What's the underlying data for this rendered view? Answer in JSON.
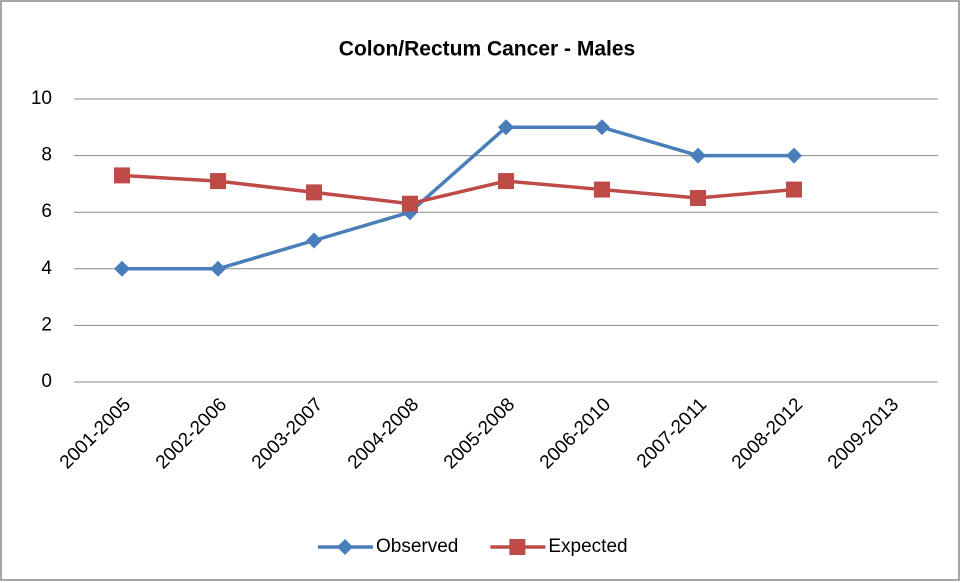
{
  "chart_data": {
    "type": "line",
    "title": "Colon/Rectum Cancer - Males",
    "categories": [
      "2001-2005",
      "2002-2006",
      "2003-2007",
      "2004-2008",
      "2005-2008",
      "2006-2010",
      "2007-2011",
      "2008-2012",
      "2009-2013"
    ],
    "series": [
      {
        "name": "Observed",
        "color": "#4a7ebb",
        "marker": "diamond",
        "values": [
          4,
          4,
          5,
          6,
          9,
          9,
          8,
          8,
          null
        ]
      },
      {
        "name": "Expected",
        "color": "#be4b48",
        "marker": "square",
        "values": [
          7.3,
          7.1,
          6.7,
          6.3,
          7.1,
          6.8,
          6.5,
          6.8,
          null
        ]
      }
    ],
    "ylim": [
      0,
      10
    ],
    "yticks": [
      0,
      2,
      4,
      6,
      8,
      10
    ],
    "grid": true,
    "legend": "bottom"
  }
}
